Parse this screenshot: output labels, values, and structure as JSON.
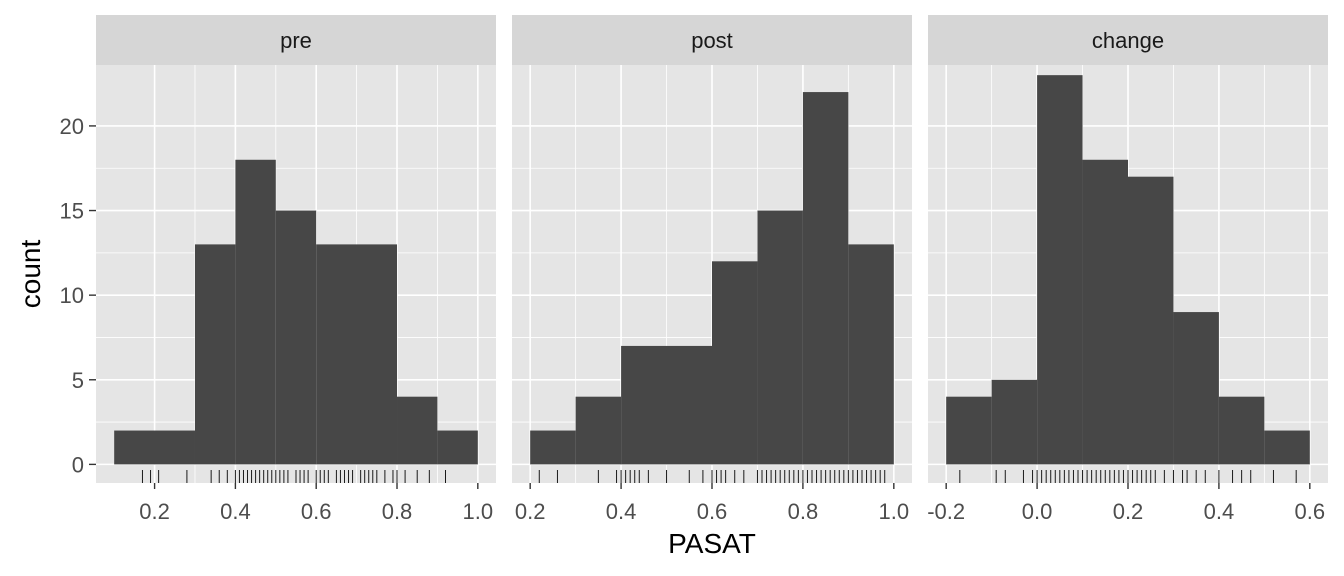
{
  "chart_data": {
    "type": "histogram-facets",
    "xlabel": "PASAT",
    "ylabel": "count",
    "ylim": [
      -1.1,
      23.6
    ],
    "yticks": [
      0,
      5,
      10,
      15,
      20
    ],
    "colors": {
      "bar": "#474747",
      "panel": "#e5e5e5",
      "strip": "#d6d6d6",
      "gridline": "#ffffff",
      "rug": "#1a1a1a",
      "tick_mark": "#333333"
    },
    "panels": [
      {
        "label": "pre",
        "xlim": [
          0.055,
          1.045
        ],
        "xticks": [
          0.2,
          0.4,
          0.6,
          0.8,
          1.0
        ],
        "xtick_labels": [
          "0.2",
          "0.4",
          "0.6",
          "0.8",
          "1.0"
        ],
        "bin_edges": [
          0.1,
          0.3,
          0.4,
          0.5,
          0.6,
          0.8,
          0.9,
          1.0
        ],
        "counts": [
          2,
          13,
          18,
          15,
          13,
          4,
          2
        ],
        "rug": [
          0.17,
          0.19,
          0.21,
          0.28,
          0.34,
          0.36,
          0.38,
          0.4,
          0.41,
          0.42,
          0.43,
          0.44,
          0.45,
          0.46,
          0.47,
          0.48,
          0.49,
          0.5,
          0.51,
          0.52,
          0.53,
          0.55,
          0.56,
          0.57,
          0.58,
          0.6,
          0.61,
          0.62,
          0.63,
          0.65,
          0.66,
          0.67,
          0.68,
          0.69,
          0.71,
          0.72,
          0.73,
          0.74,
          0.75,
          0.77,
          0.79,
          0.8,
          0.82,
          0.85,
          0.88,
          0.92
        ]
      },
      {
        "label": "post",
        "xlim": [
          0.16,
          1.04
        ],
        "xticks": [
          0.2,
          0.4,
          0.6,
          0.8,
          1.0
        ],
        "xtick_labels": [
          "0.2",
          "0.4",
          "0.6",
          "0.8",
          "1.0"
        ],
        "bin_edges": [
          0.2,
          0.3,
          0.4,
          0.6,
          0.7,
          0.8,
          0.9,
          1.0
        ],
        "counts": [
          2,
          4,
          7,
          12,
          15,
          22,
          13
        ],
        "rug": [
          0.22,
          0.26,
          0.35,
          0.39,
          0.4,
          0.41,
          0.42,
          0.43,
          0.44,
          0.46,
          0.5,
          0.55,
          0.58,
          0.6,
          0.61,
          0.62,
          0.63,
          0.65,
          0.67,
          0.7,
          0.71,
          0.72,
          0.73,
          0.74,
          0.75,
          0.76,
          0.77,
          0.78,
          0.79,
          0.8,
          0.81,
          0.82,
          0.83,
          0.84,
          0.85,
          0.86,
          0.87,
          0.88,
          0.89,
          0.9,
          0.91,
          0.92,
          0.93,
          0.94,
          0.95,
          0.96,
          0.97,
          0.98
        ]
      },
      {
        "label": "change",
        "xlim": [
          -0.24,
          0.64
        ],
        "xticks": [
          -0.2,
          0.0,
          0.2,
          0.4,
          0.6
        ],
        "xtick_labels": [
          "-0.2",
          "0.0",
          "0.2",
          "0.4",
          "0.6"
        ],
        "bin_edges": [
          -0.2,
          -0.1,
          0.0,
          0.1,
          0.2,
          0.3,
          0.4,
          0.5,
          0.6
        ],
        "counts": [
          4,
          5,
          23,
          18,
          17,
          9,
          4,
          2
        ],
        "rug": [
          -0.17,
          -0.09,
          -0.07,
          -0.03,
          -0.01,
          0.0,
          0.01,
          0.02,
          0.03,
          0.04,
          0.05,
          0.06,
          0.07,
          0.08,
          0.09,
          0.1,
          0.11,
          0.12,
          0.13,
          0.14,
          0.15,
          0.16,
          0.17,
          0.18,
          0.19,
          0.2,
          0.21,
          0.22,
          0.23,
          0.24,
          0.25,
          0.26,
          0.28,
          0.3,
          0.32,
          0.33,
          0.35,
          0.37,
          0.4,
          0.43,
          0.45,
          0.47,
          0.52,
          0.57
        ]
      }
    ]
  }
}
